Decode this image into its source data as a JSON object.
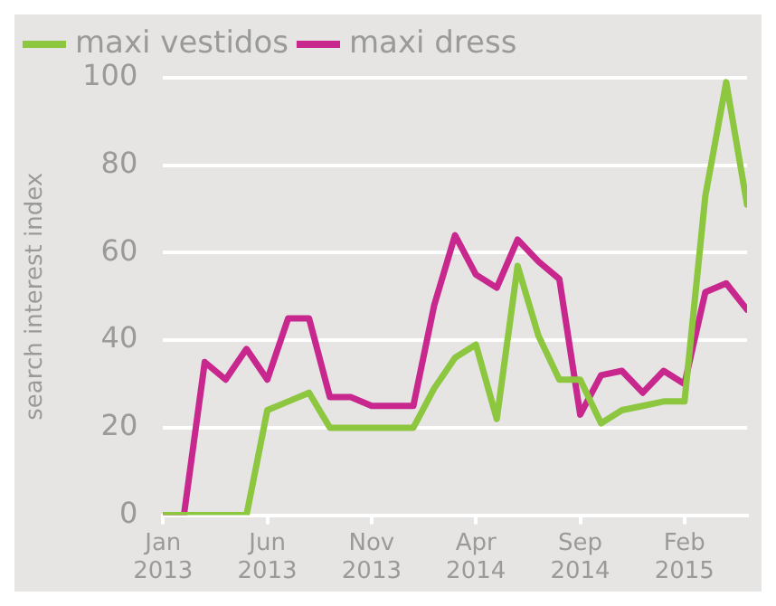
{
  "chart_data": {
    "type": "line",
    "ylabel": "search interest index",
    "x": [
      "2013-01",
      "2013-02",
      "2013-03",
      "2013-04",
      "2013-05",
      "2013-06",
      "2013-07",
      "2013-08",
      "2013-09",
      "2013-10",
      "2013-11",
      "2013-12",
      "2014-01",
      "2014-02",
      "2014-03",
      "2014-04",
      "2014-05",
      "2014-06",
      "2014-07",
      "2014-08",
      "2014-09",
      "2014-10",
      "2014-11",
      "2014-12",
      "2015-01",
      "2015-02",
      "2015-03",
      "2015-04",
      "2015-05"
    ],
    "series": [
      {
        "name": "maxi vestidos",
        "color": "#8dc63f",
        "values": [
          0,
          0,
          0,
          0,
          0,
          24,
          26,
          28,
          20,
          20,
          20,
          20,
          20,
          29,
          36,
          39,
          22,
          57,
          41,
          31,
          31,
          21,
          24,
          25,
          26,
          26,
          73,
          99,
          71
        ]
      },
      {
        "name": "maxi dress",
        "color": "#c8288e",
        "values": [
          0,
          0,
          35,
          31,
          38,
          31,
          45,
          45,
          27,
          27,
          25,
          25,
          25,
          48,
          64,
          55,
          52,
          63,
          58,
          54,
          23,
          32,
          33,
          28,
          33,
          30,
          51,
          53,
          47
        ]
      }
    ],
    "xlim": [
      "2013-01",
      "2015-05"
    ],
    "xticks": [
      {
        "value": "2013-01",
        "label": "Jan 2013"
      },
      {
        "value": "2013-06",
        "label": "Jun 2013"
      },
      {
        "value": "2013-11",
        "label": "Nov 2013"
      },
      {
        "value": "2014-04",
        "label": "Apr 2014"
      },
      {
        "value": "2014-09",
        "label": "Sep 2014"
      },
      {
        "value": "2015-02",
        "label": "Feb 2015"
      }
    ],
    "ylim": [
      0,
      100
    ],
    "yticks": [
      0,
      20,
      40,
      60,
      80,
      100
    ],
    "grid": "y",
    "legend": "top",
    "marker": "none",
    "line_style": "solid"
  }
}
